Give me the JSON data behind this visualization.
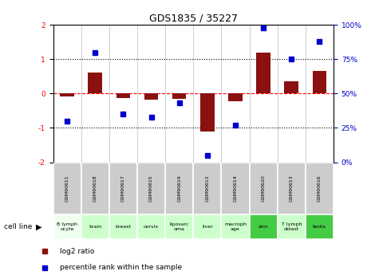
{
  "title": "GDS1835 / 35227",
  "samples": [
    "GSM90611",
    "GSM90618",
    "GSM90617",
    "GSM90615",
    "GSM90619",
    "GSM90612",
    "GSM90614",
    "GSM90620",
    "GSM90613",
    "GSM90616"
  ],
  "cell_lines": [
    "B lymph\nocyte",
    "brain",
    "breast",
    "cervix",
    "liposarc\noma",
    "liver",
    "macroph\nage",
    "skin",
    "T lymph\noblast",
    "testis"
  ],
  "cell_line_colors": [
    "#eeffee",
    "#ccffcc",
    "#ccffcc",
    "#ccffcc",
    "#ccffcc",
    "#ccffcc",
    "#ccffcc",
    "#44cc44",
    "#ccffcc",
    "#44cc44"
  ],
  "log2_ratio": [
    -0.08,
    0.6,
    -0.13,
    -0.18,
    -0.15,
    -1.1,
    -0.22,
    1.2,
    0.35,
    0.65
  ],
  "percentile_rank": [
    30,
    80,
    35,
    33,
    43,
    5,
    27,
    98,
    75,
    88
  ],
  "ylim": [
    -2,
    2
  ],
  "bar_color": "#8B1010",
  "dot_color": "#0000CC",
  "redline_color": "#FF0000",
  "header_bg": "#cccccc",
  "legend_red": "#8B1010",
  "legend_blue": "#0000CC"
}
